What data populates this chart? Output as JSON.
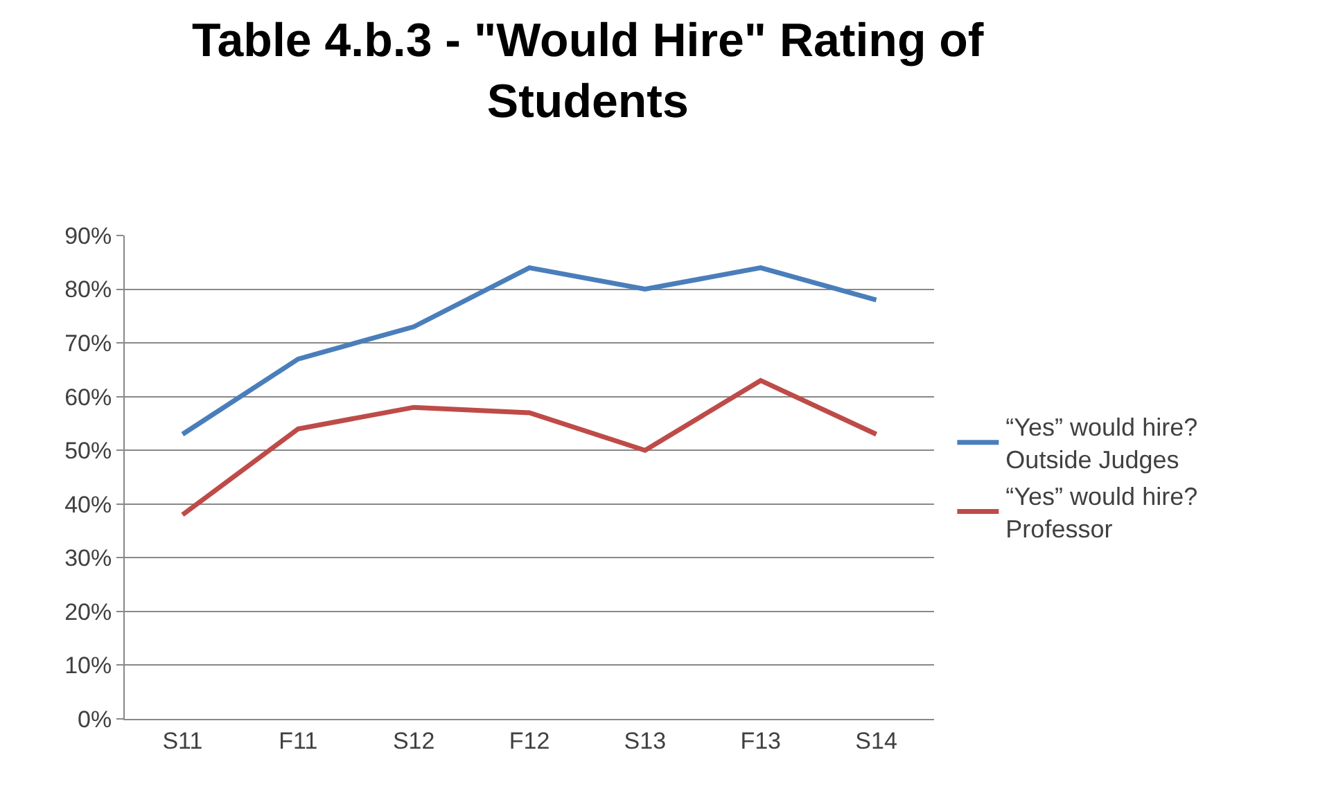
{
  "chart_data": {
    "type": "line",
    "title": "Table 4.b.3 - \"Would Hire\" Rating of\nStudents",
    "categories": [
      "S11",
      "F11",
      "S12",
      "F12",
      "S13",
      "F13",
      "S14"
    ],
    "series": [
      {
        "name": "“Yes” would hire?\nOutside Judges",
        "color": "#4a7ebb",
        "values": [
          53,
          67,
          73,
          84,
          80,
          84,
          78
        ]
      },
      {
        "name": "“Yes” would hire?\nProfessor",
        "color": "#be4b48",
        "values": [
          38,
          54,
          58,
          57,
          50,
          63,
          53
        ]
      }
    ],
    "ylim": [
      0,
      90
    ],
    "yticks": [
      {
        "value": 0,
        "label": "0%"
      },
      {
        "value": 10,
        "label": "10%"
      },
      {
        "value": 20,
        "label": "20%"
      },
      {
        "value": 30,
        "label": "30%"
      },
      {
        "value": 40,
        "label": "40%"
      },
      {
        "value": 50,
        "label": "50%"
      },
      {
        "value": 60,
        "label": "60%"
      },
      {
        "value": 70,
        "label": "70%"
      },
      {
        "value": 80,
        "label": "80%"
      },
      {
        "value": 90,
        "label": "90%"
      }
    ],
    "grid": "y",
    "legend": "right",
    "marker": "none",
    "line_style": "solid"
  }
}
